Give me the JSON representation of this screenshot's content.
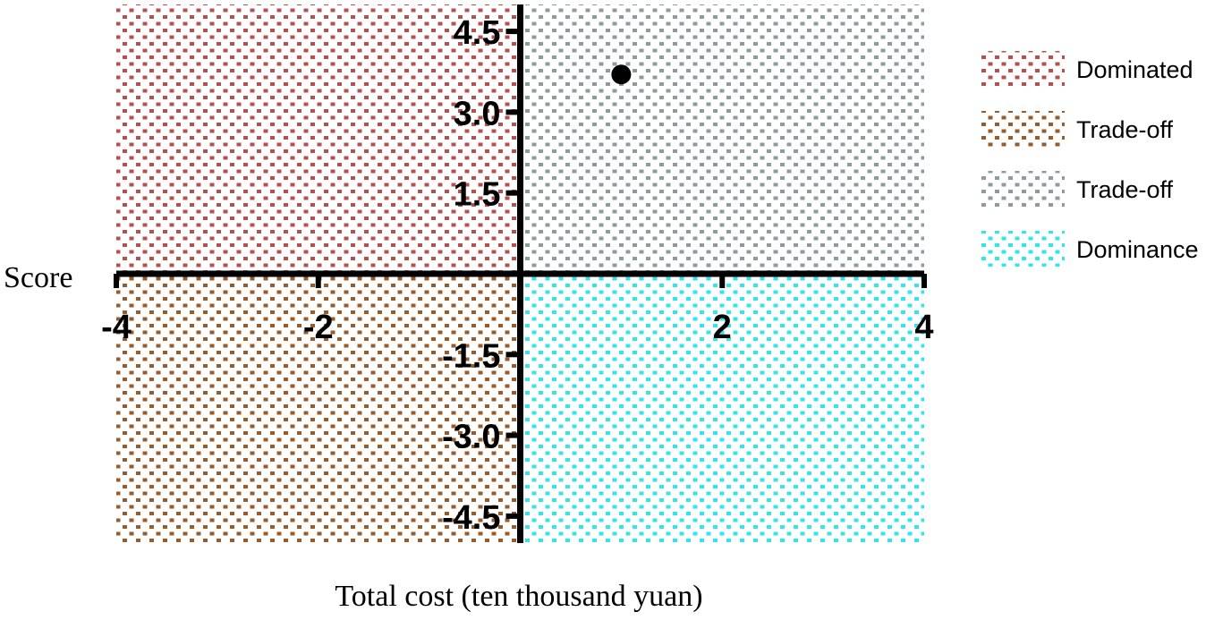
{
  "chart_data": {
    "type": "scatter",
    "title": "",
    "xlabel": "Total cost (ten thousand yuan)",
    "ylabel": "Score",
    "xlim": [
      -4,
      4
    ],
    "ylim": [
      -5,
      5
    ],
    "xticks": [
      -4,
      -2,
      2,
      4
    ],
    "xtick_labels": [
      "-4",
      "-2",
      "2",
      "4"
    ],
    "yticks": [
      4.5,
      3.0,
      1.5,
      -1.5,
      -3.0,
      -4.5
    ],
    "ytick_labels": [
      "4.5",
      "3.0",
      "1.5",
      "-1.5",
      "-3.0",
      "-4.5"
    ],
    "points": [
      {
        "x": 1.0,
        "y": 3.7
      }
    ],
    "regions": [
      {
        "quadrant": "upper-left",
        "label": "Dominated",
        "color": "#b5504f"
      },
      {
        "quadrant": "lower-left",
        "label": "Trade-off",
        "color": "#9a5b2a"
      },
      {
        "quadrant": "upper-right",
        "label": "Trade-off",
        "color": "#8c9c9c"
      },
      {
        "quadrant": "lower-right",
        "label": "Dominance",
        "color": "#2ee6ee"
      }
    ],
    "legend_position": "right",
    "grid": false
  }
}
